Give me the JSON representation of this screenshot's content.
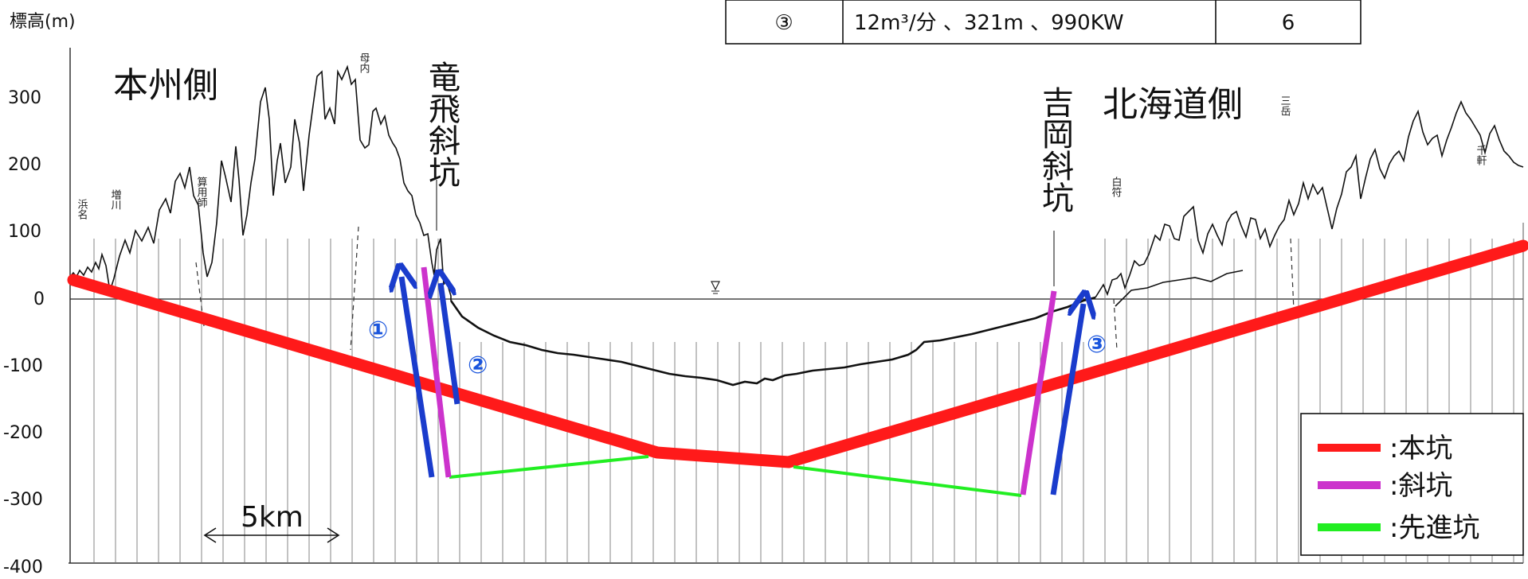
{
  "y_axis_label": "標高(m)",
  "y_ticks": [
    "300",
    "200",
    "100",
    "0",
    "-100",
    "-200",
    "-300",
    "-400"
  ],
  "regions": {
    "honshu": "本州側",
    "hokkaido": "北海道側"
  },
  "shafts": {
    "tappi": "竜飛斜坑",
    "yoshioka": "吉岡斜坑"
  },
  "place_names": [
    "浜名",
    "増川",
    "算用師",
    "母内",
    "白符",
    "三岳",
    "千軒"
  ],
  "scale_bar": "5km",
  "arrow_labels": {
    "one": "①",
    "two": "②",
    "three": "③"
  },
  "table": {
    "row": {
      "id": "③",
      "spec": "12m³/分 、321m 、990KW",
      "count": "6"
    }
  },
  "legend": [
    {
      "label": ":本坑",
      "color": "#ff1a1a"
    },
    {
      "label": ":斜坑",
      "color": "#cc33cc"
    },
    {
      "label": ":先進坑",
      "color": "#22ee22"
    }
  ],
  "colors": {
    "arrow": "#1a3ccc",
    "arrow_label": "#1a55dd"
  }
}
